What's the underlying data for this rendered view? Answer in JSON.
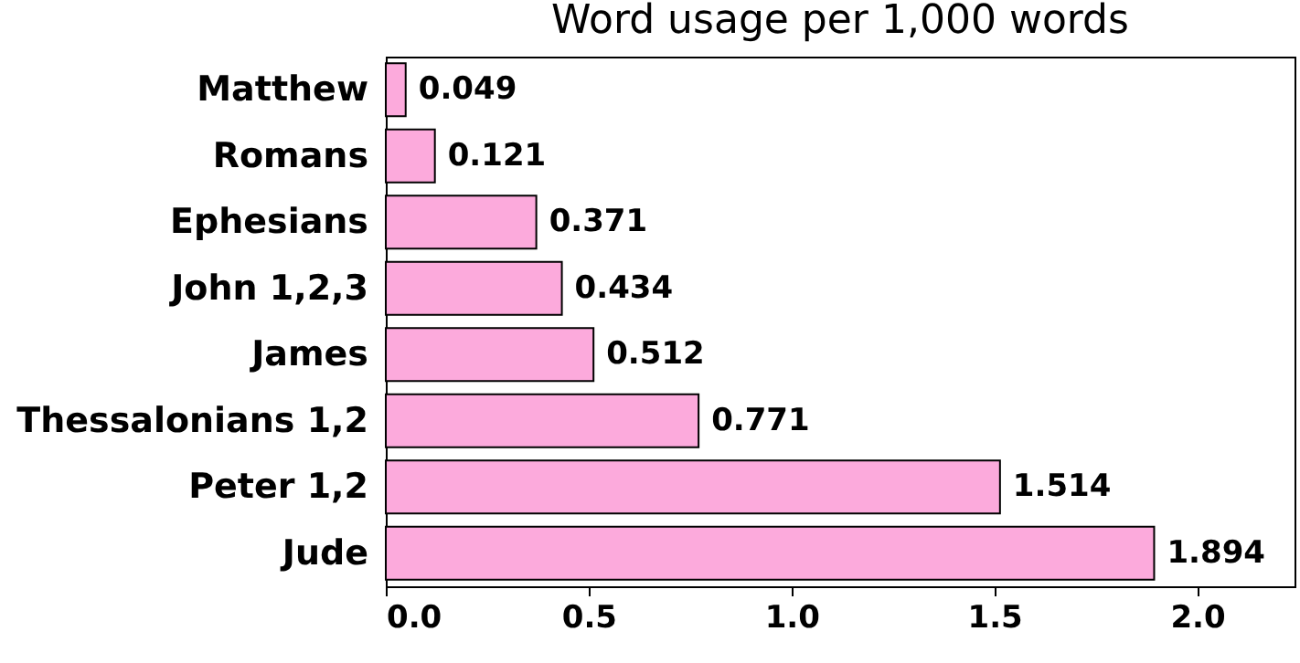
{
  "chart_data": {
    "type": "bar",
    "orientation": "horizontal",
    "title": "Word usage per 1,000 words",
    "categories": [
      "Matthew",
      "Romans",
      "Ephesians",
      "John 1,2,3",
      "James",
      "Thessalonians 1,2",
      "Peter 1,2",
      "Jude"
    ],
    "values": [
      0.049,
      0.121,
      0.371,
      0.434,
      0.512,
      0.771,
      1.514,
      1.894
    ],
    "color": "#fcaadc",
    "xlim": [
      0,
      2.24
    ],
    "xticks": [
      {
        "value": 0,
        "label": "0.0"
      },
      0.5,
      {
        "value": 1,
        "label": "1.0"
      },
      1.5,
      {
        "value": 2,
        "label": "2.0"
      }
    ],
    "grid": false,
    "data_labels": true
  }
}
